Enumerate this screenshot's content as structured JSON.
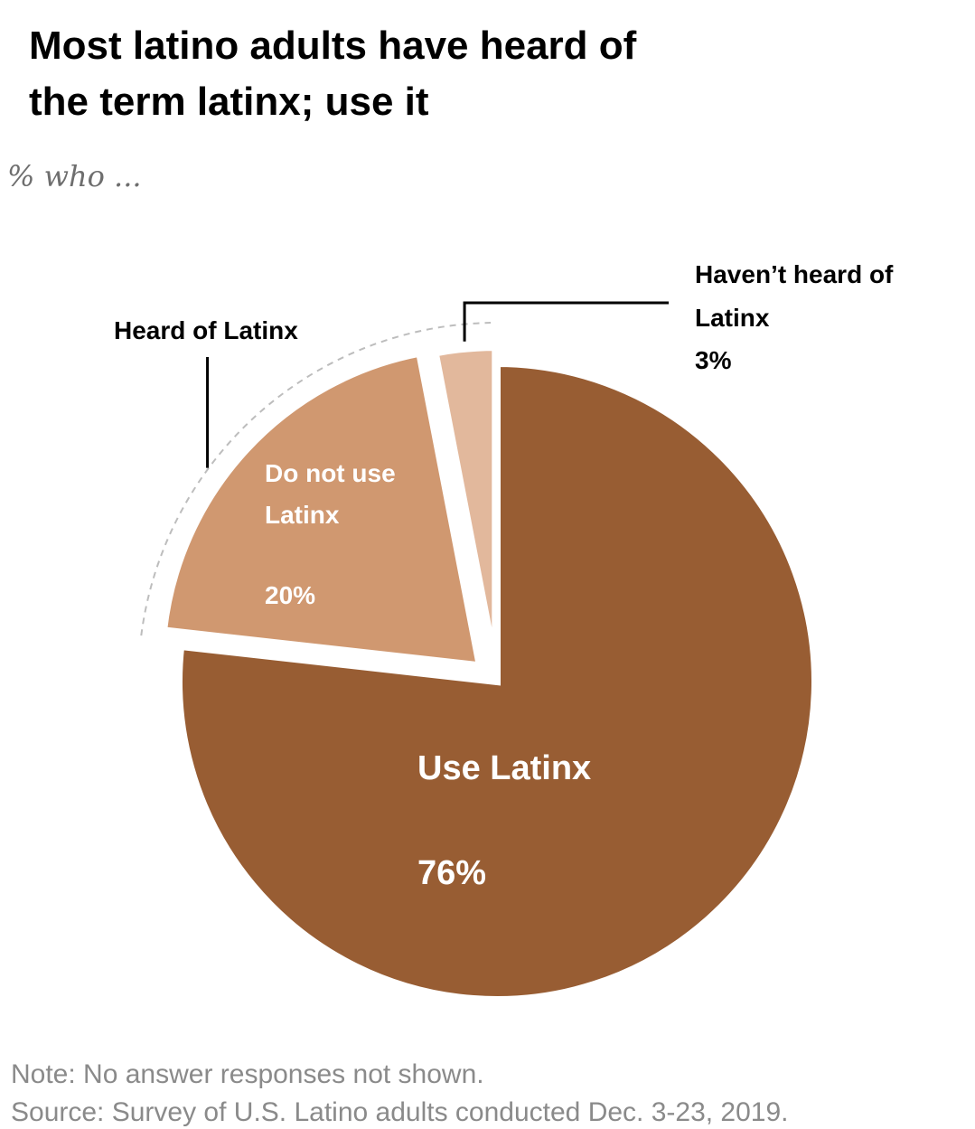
{
  "chart_data": {
    "type": "pie",
    "title": "Most latino adults have heard of the term latinx; use it",
    "title_lines": [
      "Most latino adults have heard of",
      "the term latinx; use it"
    ],
    "subtitle": "% who ...",
    "slices": [
      {
        "name": "Use Latinx",
        "value": 76,
        "label_lines": [
          "Use Latinx"
        ],
        "value_label": "76%",
        "color": "#985d33"
      },
      {
        "name": "Do not use Latinx",
        "value": 20,
        "label_lines": [
          "Do not use",
          "Latinx"
        ],
        "value_label": "20%",
        "color": "#d09870"
      },
      {
        "name": "Haven't heard of Latinx",
        "value": 3,
        "label_lines": [
          "Haven’t heard of",
          "Latinx"
        ],
        "value_label": "3%",
        "color": "#e2b89c"
      }
    ],
    "group_label": "Heard of Latinx",
    "notes": {
      "note": "Note: No answer responses not shown.",
      "source": "Source: Survey of U.S. Latino adults conducted Dec. 3-23, 2019."
    }
  }
}
